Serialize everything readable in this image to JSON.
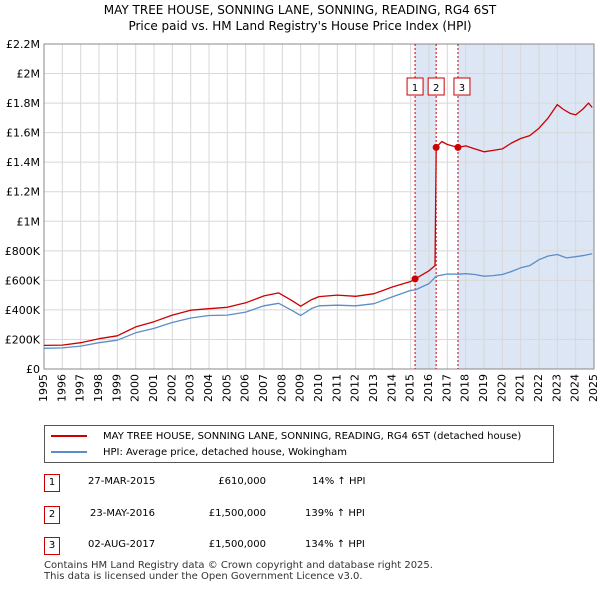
{
  "title_line1": "MAY TREE HOUSE, SONNING LANE, SONNING, READING, RG4 6ST",
  "title_line2": "Price paid vs. HM Land Registry's House Price Index (HPI)",
  "colors": {
    "red": "#cc0000",
    "blue": "#5b8ec9",
    "shade": "#dde6f5",
    "grid": "#d8d8d8"
  },
  "legend": {
    "red_label": "MAY TREE HOUSE, SONNING LANE, SONNING, READING, RG4 6ST (detached house)",
    "blue_label": "HPI: Average price, detached house, Wokingham"
  },
  "transactions": [
    {
      "num": "1",
      "date": "27-MAR-2015",
      "price": "£610,000",
      "hpi": "14% ↑ HPI"
    },
    {
      "num": "2",
      "date": "23-MAY-2016",
      "price": "£1,500,000",
      "hpi": "139% ↑ HPI"
    },
    {
      "num": "3",
      "date": "02-AUG-2017",
      "price": "£1,500,000",
      "hpi": "134% ↑ HPI"
    }
  ],
  "footer": {
    "line1": "Contains HM Land Registry data © Crown copyright and database right 2025.",
    "line2": "This data is licensed under the Open Government Licence v3.0."
  },
  "chart_data": {
    "type": "line",
    "xlim": [
      1995,
      2025
    ],
    "ylim": [
      0,
      2200000
    ],
    "y_ticks": [
      0,
      200000,
      400000,
      600000,
      800000,
      1000000,
      1200000,
      1400000,
      1600000,
      1800000,
      2000000,
      2200000
    ],
    "y_tick_labels": [
      "£0",
      "£200K",
      "£400K",
      "£600K",
      "£800K",
      "£1M",
      "£1.2M",
      "£1.4M",
      "£1.6M",
      "£1.8M",
      "£2M",
      "£2.2M"
    ],
    "x_ticks": [
      "1995",
      "1996",
      "1997",
      "1998",
      "1999",
      "2000",
      "2001",
      "2002",
      "2003",
      "2004",
      "2005",
      "2006",
      "2007",
      "2008",
      "2009",
      "2010",
      "2011",
      "2012",
      "2013",
      "2014",
      "2015",
      "2016",
      "2017",
      "2018",
      "2019",
      "2020",
      "2021",
      "2022",
      "2023",
      "2024",
      "2025"
    ],
    "grid": true,
    "shaded_regions": [
      [
        2015.24,
        2016.39
      ],
      [
        2017.58,
        2025
      ]
    ],
    "markers": [
      {
        "label": "1",
        "x": 2015.24,
        "y": 610000
      },
      {
        "label": "2",
        "x": 2016.39,
        "y": 1500000
      },
      {
        "label": "3",
        "x": 2017.58,
        "y": 1500000
      }
    ],
    "series": [
      {
        "name": "MAY TREE HOUSE, SONNING LANE, SONNING, READING, RG4 6ST (detached house)",
        "color": "#cc0000",
        "points": [
          [
            1995,
            160000
          ],
          [
            1996,
            162000
          ],
          [
            1997,
            178000
          ],
          [
            1998,
            205000
          ],
          [
            1999,
            225000
          ],
          [
            2000,
            285000
          ],
          [
            2001,
            320000
          ],
          [
            2002,
            365000
          ],
          [
            2003,
            398000
          ],
          [
            2004,
            408000
          ],
          [
            2005,
            418000
          ],
          [
            2006,
            448000
          ],
          [
            2007,
            495000
          ],
          [
            2007.8,
            515000
          ],
          [
            2008.5,
            465000
          ],
          [
            2009,
            425000
          ],
          [
            2009.6,
            470000
          ],
          [
            2010,
            490000
          ],
          [
            2011,
            500000
          ],
          [
            2012,
            492000
          ],
          [
            2013,
            510000
          ],
          [
            2014,
            555000
          ],
          [
            2015,
            592000
          ],
          [
            2015.24,
            610000
          ],
          [
            2016,
            665000
          ],
          [
            2016.33,
            700000
          ],
          [
            2016.39,
            1500000
          ],
          [
            2016.7,
            1540000
          ],
          [
            2017,
            1520000
          ],
          [
            2017.58,
            1500000
          ],
          [
            2018,
            1510000
          ],
          [
            2018.5,
            1490000
          ],
          [
            2019,
            1470000
          ],
          [
            2019.5,
            1480000
          ],
          [
            2020,
            1490000
          ],
          [
            2020.5,
            1530000
          ],
          [
            2021,
            1560000
          ],
          [
            2021.5,
            1580000
          ],
          [
            2022,
            1630000
          ],
          [
            2022.5,
            1700000
          ],
          [
            2023,
            1790000
          ],
          [
            2023.3,
            1760000
          ],
          [
            2023.7,
            1730000
          ],
          [
            2024,
            1720000
          ],
          [
            2024.4,
            1760000
          ],
          [
            2024.7,
            1800000
          ],
          [
            2024.9,
            1770000
          ]
        ]
      },
      {
        "name": "HPI: Average price, detached house, Wokingham",
        "color": "#5b8ec9",
        "points": [
          [
            1995,
            140000
          ],
          [
            1996,
            143000
          ],
          [
            1997,
            155000
          ],
          [
            1998,
            178000
          ],
          [
            1999,
            195000
          ],
          [
            2000,
            245000
          ],
          [
            2001,
            275000
          ],
          [
            2002,
            315000
          ],
          [
            2003,
            345000
          ],
          [
            2004,
            362000
          ],
          [
            2005,
            365000
          ],
          [
            2006,
            385000
          ],
          [
            2007,
            428000
          ],
          [
            2007.8,
            445000
          ],
          [
            2008.5,
            398000
          ],
          [
            2009,
            362000
          ],
          [
            2009.6,
            410000
          ],
          [
            2010,
            428000
          ],
          [
            2011,
            432000
          ],
          [
            2012,
            428000
          ],
          [
            2013,
            442000
          ],
          [
            2014,
            488000
          ],
          [
            2015,
            532000
          ],
          [
            2015.24,
            535000
          ],
          [
            2016,
            578000
          ],
          [
            2016.39,
            628000
          ],
          [
            2017,
            643000
          ],
          [
            2017.58,
            642000
          ],
          [
            2018,
            645000
          ],
          [
            2018.5,
            640000
          ],
          [
            2019,
            628000
          ],
          [
            2019.5,
            632000
          ],
          [
            2020,
            640000
          ],
          [
            2020.5,
            660000
          ],
          [
            2021,
            685000
          ],
          [
            2021.5,
            700000
          ],
          [
            2022,
            740000
          ],
          [
            2022.5,
            765000
          ],
          [
            2023,
            775000
          ],
          [
            2023.5,
            752000
          ],
          [
            2024,
            760000
          ],
          [
            2024.5,
            770000
          ],
          [
            2024.9,
            780000
          ]
        ]
      }
    ]
  }
}
